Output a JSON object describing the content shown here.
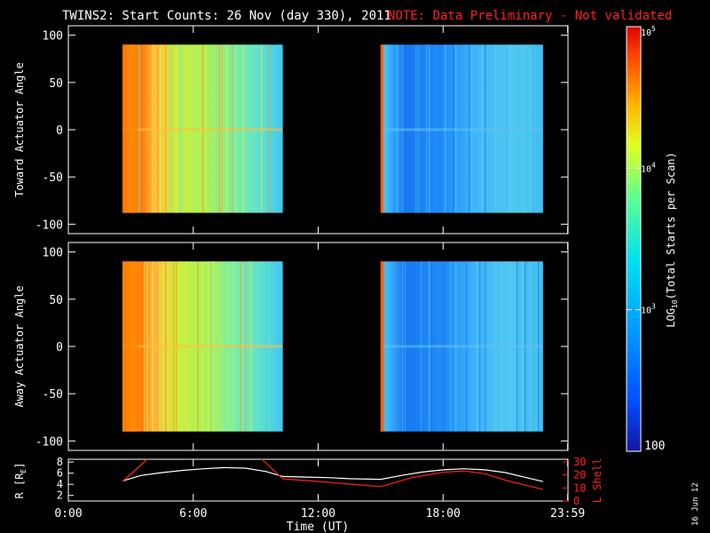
{
  "title": {
    "main": "TWINS2: Start Counts: 26 Nov (day 330), 2011",
    "note": "NOTE: Data Preliminary - Not validated"
  },
  "colors": {
    "note": "#ff2020",
    "frame": "#ffffff",
    "lshell": "#ff2020",
    "radius": "#ffffff"
  },
  "panels": [
    {
      "id": "toward",
      "ylabel": "Toward Actuator Angle"
    },
    {
      "id": "away",
      "ylabel": "Away Actuator Angle"
    }
  ],
  "colorbar": {
    "label": "LOG10(Total Starts per Scan)",
    "label_parts": {
      "pre": "LOG",
      "sub": "10",
      "post": "(Total Starts per Scan)"
    },
    "ticks": [
      {
        "value": 100,
        "text": "100"
      },
      {
        "value": 1000,
        "base": "10",
        "exp": "3"
      },
      {
        "value": 10000,
        "base": "10",
        "exp": "4"
      },
      {
        "value": 100000,
        "base": "10",
        "exp": "5"
      }
    ]
  },
  "footer": {
    "date": "16 Jun 12"
  },
  "chart_data": [
    {
      "type": "heatmap",
      "title": "Toward Actuator Angle",
      "ylabel": "Toward Actuator Angle",
      "x_range_hours": [
        0,
        24
      ],
      "ylim": [
        -110,
        110
      ],
      "yticks": [
        -100,
        -50,
        0,
        50,
        100
      ],
      "scale": "log",
      "zlim": [
        100,
        100000
      ],
      "data_intervals_hours": [
        [
          2.6,
          10.3
        ],
        [
          15.0,
          22.8
        ]
      ],
      "angle_coverage": [
        -88,
        90
      ]
    },
    {
      "type": "heatmap",
      "title": "Away Actuator Angle",
      "ylabel": "Away Actuator Angle",
      "x_range_hours": [
        0,
        24
      ],
      "ylim": [
        -110,
        110
      ],
      "yticks": [
        -100,
        -50,
        0,
        50,
        100
      ],
      "scale": "log",
      "zlim": [
        100,
        100000
      ],
      "data_intervals_hours": [
        [
          2.6,
          10.3
        ],
        [
          15.0,
          22.8
        ]
      ],
      "angle_coverage": [
        -90,
        90
      ]
    },
    {
      "type": "line",
      "xlabel": "Time (UT)",
      "ylabel_left": "R [RE]",
      "ylabel_left_parts": {
        "pre": "R [R",
        "sub": "E",
        "post": "]"
      },
      "ylabel_right": "L Shell",
      "xticks": [
        {
          "value": 0,
          "label": "0:00"
        },
        {
          "value": 6,
          "label": "6:00"
        },
        {
          "value": 12,
          "label": "12:00"
        },
        {
          "value": 18,
          "label": "18:00"
        },
        {
          "value": 23.983,
          "label": "23:59"
        }
      ],
      "ylim_left": [
        1,
        8.5
      ],
      "yticks_left": [
        2,
        4,
        6,
        8
      ],
      "ylim_right": [
        0,
        32
      ],
      "yticks_right": [
        0,
        10,
        20,
        30
      ],
      "series": [
        {
          "name": "R",
          "axis": "left",
          "x": [
            2.6,
            3.5,
            4.5,
            5.5,
            6.5,
            7.5,
            8.5,
            9.5,
            10.3,
            11.5,
            12.5,
            13.5,
            15.0,
            16.0,
            17.0,
            18.0,
            19.0,
            20.0,
            21.0,
            22.0,
            22.8
          ],
          "y": [
            4.6,
            5.6,
            6.1,
            6.5,
            6.8,
            7.0,
            6.9,
            6.3,
            5.4,
            5.3,
            5.2,
            5.0,
            4.9,
            5.6,
            6.2,
            6.6,
            6.8,
            6.6,
            6.1,
            5.2,
            4.5
          ]
        },
        {
          "name": "L Shell",
          "axis": "right",
          "x": [
            2.6,
            3.8,
            null,
            9.3,
            10.3,
            12.0,
            13.5,
            15.0,
            16.5,
            18.0,
            19.0,
            20.0,
            21.0,
            22.0,
            22.8
          ],
          "y": [
            15,
            32,
            null,
            32,
            17,
            15,
            13,
            11,
            18,
            22,
            23,
            21,
            16,
            12,
            9
          ]
        }
      ]
    }
  ]
}
